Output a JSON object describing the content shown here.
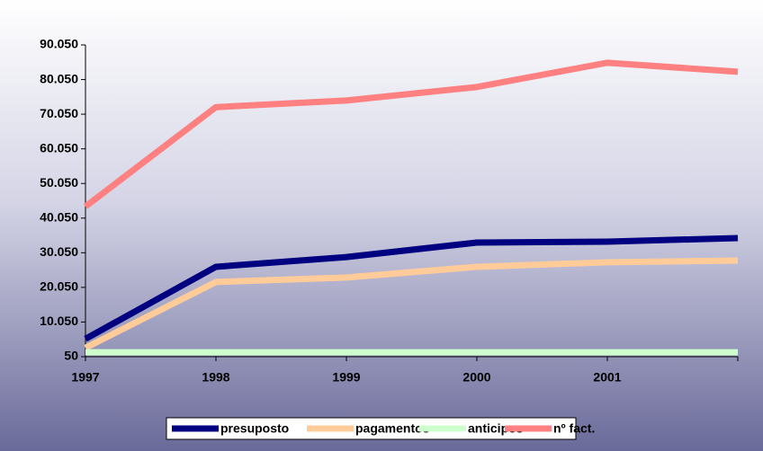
{
  "chart_data": {
    "type": "line",
    "categories": [
      "1997",
      "1998",
      "1999",
      "2000",
      "2001",
      null
    ],
    "series": [
      {
        "name": "presuposto",
        "color": "#000080",
        "values": [
          5200,
          26000,
          28800,
          33000,
          33250,
          34300
        ]
      },
      {
        "name": "pagamentos",
        "color": "#ffcc99",
        "values": [
          2600,
          21600,
          22900,
          26000,
          27300,
          27800
        ]
      },
      {
        "name": "anticipos",
        "color": "#ccffcc",
        "values": [
          1300,
          1300,
          1300,
          1300,
          1300,
          1300
        ]
      },
      {
        "name": "nº fact.",
        "color": "#ff8080",
        "values": [
          43400,
          72100,
          74000,
          77900,
          84900,
          82300
        ]
      }
    ],
    "ylim": [
      50,
      90050
    ],
    "yticks": [
      50,
      {
        "value": 10050,
        "label": "10.050"
      },
      {
        "value": 20050,
        "label": "20.050"
      },
      {
        "value": 30050,
        "label": "30.050"
      },
      {
        "value": 40050,
        "label": "40.050"
      },
      {
        "value": 50050,
        "label": "50.050"
      },
      {
        "value": 60050,
        "label": "60.050"
      },
      {
        "value": 70050,
        "label": "70.050"
      },
      {
        "value": 80050,
        "label": "80.050"
      },
      {
        "value": 90050,
        "label": "90.050"
      }
    ],
    "legend": "bottom"
  }
}
